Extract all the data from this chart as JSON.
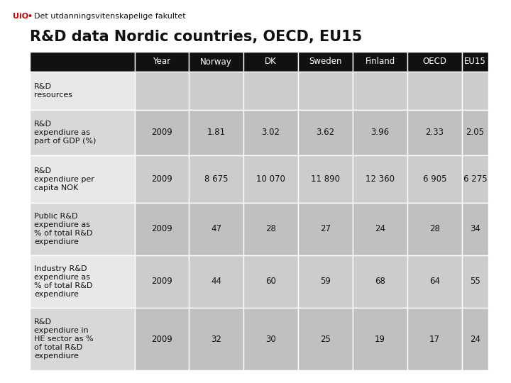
{
  "title": "R&D data Nordic countries, OECD, EU15",
  "header_row": [
    "",
    "Year",
    "Norway",
    "DK",
    "Sweden",
    "Finland",
    "OECD",
    "EU15"
  ],
  "rows": [
    {
      "label": "R&D\nresources",
      "values": [
        "",
        "",
        "",
        "",
        "",
        "",
        ""
      ]
    },
    {
      "label": "R&D\nexpendiure as\npart of GDP (%)",
      "values": [
        "2009",
        "1.81",
        "3.02",
        "3.62",
        "3.96",
        "2.33",
        "2.05"
      ]
    },
    {
      "label": "R&D\nexpendiure per\ncapita NOK",
      "values": [
        "2009",
        "8 675",
        "10 070",
        "11 890",
        "12 360",
        "6 905",
        "6 275"
      ]
    },
    {
      "label": "Public R&D\nexpendiure as\n% of total R&D\nexpendiure",
      "values": [
        "2009",
        "47",
        "28",
        "27",
        "24",
        "28",
        "34"
      ]
    },
    {
      "label": "Industry R&D\nexpendiure as\n% of total R&D\nexpendiure",
      "values": [
        "2009",
        "44",
        "60",
        "59",
        "68",
        "64",
        "55"
      ]
    },
    {
      "label": "R&D\nexpendiure in\nHE sector as %\nof total R&D\nexpendiure",
      "values": [
        "2009",
        "32",
        "30",
        "25",
        "19",
        "17",
        "24"
      ]
    }
  ],
  "header_bg": "#111111",
  "header_fg": "#ffffff",
  "label_col_bg_odd": "#e8e8e8",
  "label_col_bg_even": "#d8d8d8",
  "data_col_bg_odd": "#cccccc",
  "data_col_bg_even": "#c0c0c0",
  "cell_text_color": "#111111",
  "title_fontsize": 15,
  "header_fontsize": 8.5,
  "cell_fontsize": 8.5,
  "label_fontsize": 8,
  "background_color": "#ffffff",
  "logo_uio_color": "#cc0000",
  "logo_sep_color": "#cc0000",
  "logo_text_color": "#111111"
}
